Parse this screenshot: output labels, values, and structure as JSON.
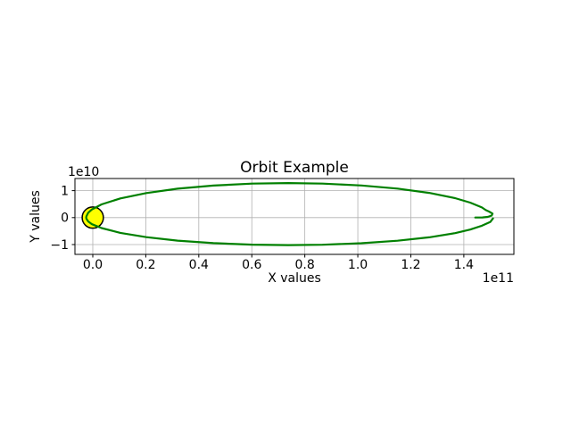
{
  "figure": {
    "background_color": "#ffffff",
    "spine_color": "#000000",
    "grid_color": "#b0b0b0"
  },
  "chart_data": {
    "type": "line",
    "title": "Orbit Example",
    "xlabel": "X values",
    "ylabel": "Y values",
    "x_offset_text": "1e11",
    "y_offset_text": "1e10",
    "x_unit_factor": 100000000000.0,
    "y_unit_factor": 10000000000.0,
    "xlim": [
      -0.0673,
      1.5889
    ],
    "ylim": [
      -1.364,
      1.45
    ],
    "x_ticks": [
      0.0,
      0.2,
      0.4,
      0.6,
      0.8,
      1.0,
      1.2,
      1.4
    ],
    "x_tick_labels": [
      "0.0",
      "0.2",
      "0.4",
      "0.6",
      "0.8",
      "1.0",
      "1.2",
      "1.4"
    ],
    "y_ticks": [
      -1,
      0,
      1
    ],
    "y_tick_labels": [
      "−1",
      "0",
      "1"
    ],
    "grid": true,
    "legend": false,
    "series": [
      {
        "name": "orbit-trajectory",
        "color": "#008000",
        "linewidth": 2.2,
        "points": [
          [
            1.51,
            -0.03
          ],
          [
            1.5,
            -0.16
          ],
          [
            1.468,
            -0.3
          ],
          [
            1.424,
            -0.444
          ],
          [
            1.367,
            -0.576
          ],
          [
            1.269,
            -0.732
          ],
          [
            1.15,
            -0.858
          ],
          [
            1.014,
            -0.951
          ],
          [
            0.867,
            -1.005
          ],
          [
            0.738,
            -1.02
          ],
          [
            0.602,
            -1.004
          ],
          [
            0.455,
            -0.948
          ],
          [
            0.32,
            -0.853
          ],
          [
            0.202,
            -0.726
          ],
          [
            0.104,
            -0.567
          ],
          [
            0.033,
            -0.389
          ],
          [
            -0.003,
            -0.244
          ],
          [
            -0.017,
            -0.144
          ],
          [
            -0.024,
            -0.042
          ],
          [
            -0.025,
            0.0
          ],
          [
            -0.024,
            0.053
          ],
          [
            -0.017,
            0.181
          ],
          [
            -0.003,
            0.306
          ],
          [
            0.033,
            0.489
          ],
          [
            0.104,
            0.712
          ],
          [
            0.202,
            0.911
          ],
          [
            0.32,
            1.071
          ],
          [
            0.455,
            1.189
          ],
          [
            0.602,
            1.26
          ],
          [
            0.738,
            1.28
          ],
          [
            0.867,
            1.261
          ],
          [
            1.014,
            1.193
          ],
          [
            1.15,
            1.077
          ],
          [
            1.269,
            0.918
          ],
          [
            1.367,
            0.723
          ],
          [
            1.424,
            0.557
          ],
          [
            1.468,
            0.378
          ],
          [
            1.483,
            0.279
          ],
          [
            1.495,
            0.225
          ],
          [
            1.508,
            0.15
          ],
          [
            1.505,
            0.075
          ],
          [
            1.49,
            0.028
          ],
          [
            1.47,
            0.008
          ],
          [
            1.443,
            0.004
          ]
        ]
      }
    ],
    "markers": [
      {
        "name": "sun",
        "shape": "circle",
        "center": [
          0,
          0
        ],
        "radius_x_units": 0.04,
        "fill": "#ffff00",
        "edge": "#000000",
        "edge_width": 1.5
      }
    ]
  }
}
